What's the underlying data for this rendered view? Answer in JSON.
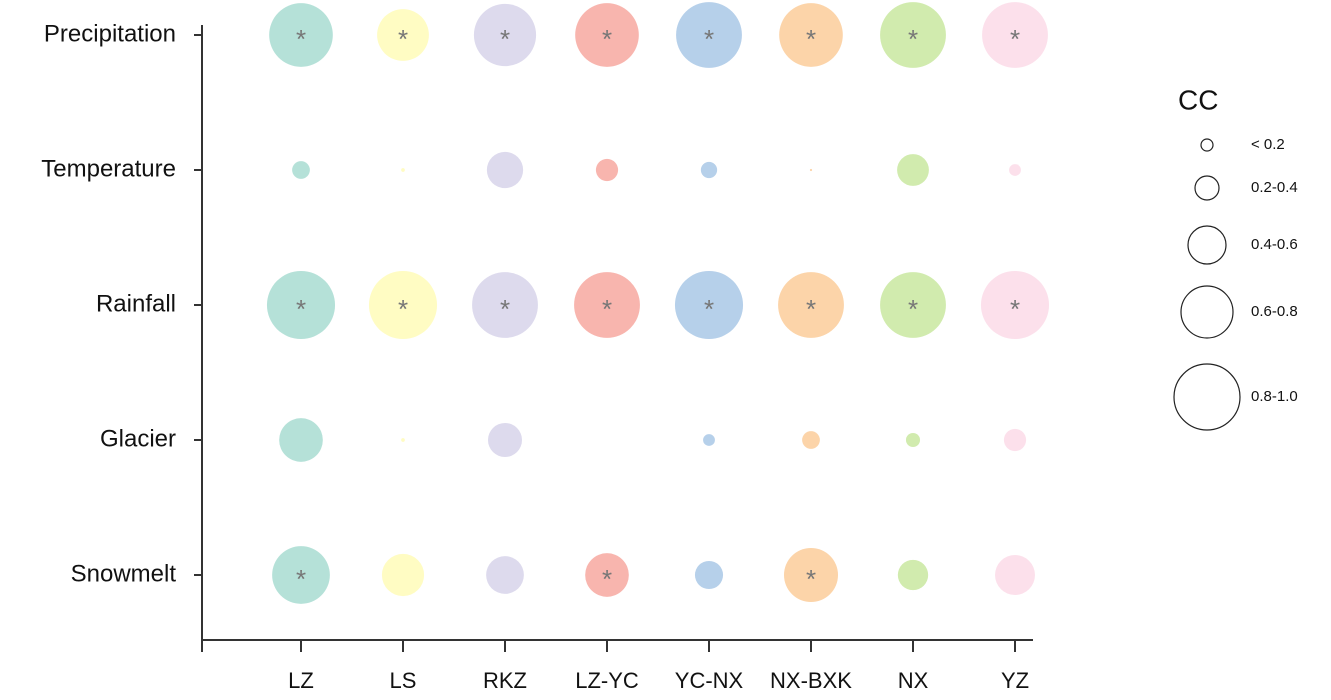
{
  "chart_data": {
    "type": "bubble",
    "categories": [
      "LZ",
      "LS",
      "RKZ",
      "LZ-YC",
      "YC-NX",
      "NX-BXK",
      "NX",
      "YZ"
    ],
    "rows": [
      "Precipitation",
      "Temperature",
      "Rainfall",
      "Glacier",
      "Snowmelt"
    ],
    "marker": "*",
    "size_legend": {
      "title": "CC",
      "labels": [
        "< 0.2",
        "0.2-0.4",
        "0.4-0.6",
        "0.6-0.8",
        "0.8-1.0"
      ]
    },
    "series": [
      {
        "name": "LZ",
        "color": "#a8dcd1",
        "values": [
          0.86,
          0.24,
          0.92,
          0.59,
          0.78
        ],
        "significant": [
          true,
          false,
          true,
          false,
          true
        ]
      },
      {
        "name": "LS",
        "color": "#fffcb8",
        "values": [
          0.7,
          0.05,
          0.92,
          0.05,
          0.57
        ],
        "significant": [
          true,
          false,
          true,
          false,
          false
        ]
      },
      {
        "name": "RKZ",
        "color": "#d7d3ea",
        "values": [
          0.84,
          0.49,
          0.89,
          0.46,
          0.51
        ],
        "significant": [
          true,
          false,
          true,
          false,
          false
        ]
      },
      {
        "name": "LZ-YC",
        "color": "#f7a8a0",
        "values": [
          0.86,
          0.3,
          0.89,
          0,
          0.59
        ],
        "significant": [
          true,
          false,
          true,
          false,
          true
        ]
      },
      {
        "name": "YC-NX",
        "color": "#a9c8e6",
        "values": [
          0.89,
          0.22,
          0.92,
          0.16,
          0.38
        ],
        "significant": [
          true,
          false,
          true,
          false,
          false
        ]
      },
      {
        "name": "NX-BXK",
        "color": "#fbcc9a",
        "values": [
          0.86,
          0.03,
          0.89,
          0.24,
          0.73
        ],
        "significant": [
          true,
          false,
          true,
          false,
          true
        ]
      },
      {
        "name": "NX",
        "color": "#c9e8a0",
        "values": [
          0.89,
          0.43,
          0.89,
          0.19,
          0.41
        ],
        "significant": [
          true,
          false,
          true,
          false,
          false
        ]
      },
      {
        "name": "YZ",
        "color": "#fcdbe8",
        "values": [
          0.89,
          0.16,
          0.92,
          0.3,
          0.54
        ],
        "significant": [
          true,
          false,
          true,
          false,
          false
        ]
      }
    ]
  }
}
